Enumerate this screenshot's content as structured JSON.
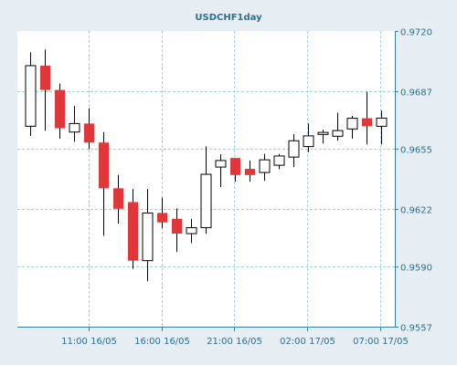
{
  "chart_data": {
    "type": "candlestick",
    "title": "USDCHF1day",
    "xlabel": "",
    "ylabel": "",
    "ylim": [
      0.9557,
      0.972
    ],
    "y_ticks": [
      "0.9720",
      "0.9687",
      "0.9655",
      "0.9622",
      "0.9590",
      "0.9557"
    ],
    "x_ticks": [
      "11:00 16/05",
      "16:00 16/05",
      "21:00 16/05",
      "02:00 17/05",
      "07:00 17/05"
    ],
    "grid": true,
    "candles": [
      {
        "open": 0.96675,
        "high": 0.97083,
        "low": 0.96622,
        "close": 0.97009
      },
      {
        "open": 0.97009,
        "high": 0.97098,
        "low": 0.9665,
        "close": 0.96875
      },
      {
        "open": 0.96875,
        "high": 0.96911,
        "low": 0.96606,
        "close": 0.96664
      },
      {
        "open": 0.96643,
        "high": 0.96787,
        "low": 0.9659,
        "close": 0.9669
      },
      {
        "open": 0.9669,
        "high": 0.96775,
        "low": 0.96549,
        "close": 0.96585
      },
      {
        "open": 0.96585,
        "high": 0.96643,
        "low": 0.96071,
        "close": 0.96333
      },
      {
        "open": 0.96333,
        "high": 0.96407,
        "low": 0.96138,
        "close": 0.9622
      },
      {
        "open": 0.96257,
        "high": 0.96329,
        "low": 0.95889,
        "close": 0.95934
      },
      {
        "open": 0.95934,
        "high": 0.96329,
        "low": 0.9582,
        "close": 0.96197
      },
      {
        "open": 0.96197,
        "high": 0.96281,
        "low": 0.96114,
        "close": 0.96145
      },
      {
        "open": 0.96165,
        "high": 0.96222,
        "low": 0.95981,
        "close": 0.96083
      },
      {
        "open": 0.96083,
        "high": 0.96165,
        "low": 0.96031,
        "close": 0.96116
      },
      {
        "open": 0.96116,
        "high": 0.96564,
        "low": 0.96082,
        "close": 0.9641
      },
      {
        "open": 0.9645,
        "high": 0.9652,
        "low": 0.9634,
        "close": 0.96486
      },
      {
        "open": 0.965,
        "high": 0.965,
        "low": 0.96369,
        "close": 0.96406
      },
      {
        "open": 0.9644,
        "high": 0.96486,
        "low": 0.96369,
        "close": 0.96406
      },
      {
        "open": 0.9642,
        "high": 0.96523,
        "low": 0.96374,
        "close": 0.9649
      },
      {
        "open": 0.9646,
        "high": 0.96523,
        "low": 0.96438,
        "close": 0.96511
      },
      {
        "open": 0.96505,
        "high": 0.96631,
        "low": 0.9645,
        "close": 0.96595
      },
      {
        "open": 0.96563,
        "high": 0.9669,
        "low": 0.96532,
        "close": 0.96622
      },
      {
        "open": 0.9663,
        "high": 0.96656,
        "low": 0.9658,
        "close": 0.96641
      },
      {
        "open": 0.9662,
        "high": 0.9675,
        "low": 0.96595,
        "close": 0.96651
      },
      {
        "open": 0.9666,
        "high": 0.96733,
        "low": 0.96607,
        "close": 0.96719
      },
      {
        "open": 0.96719,
        "high": 0.96865,
        "low": 0.96575,
        "close": 0.96675
      },
      {
        "open": 0.96675,
        "high": 0.96761,
        "low": 0.96575,
        "close": 0.9672
      }
    ]
  },
  "colors": {
    "background": "#e6eef3",
    "plot_background": "#ffffff",
    "grid": "#9fd4dc",
    "axis": "#3a7fa3",
    "text": "#2a6f94",
    "bear_fill": "#e0383a",
    "bull_fill": "#ffffff",
    "candle_outline": "#000000"
  }
}
